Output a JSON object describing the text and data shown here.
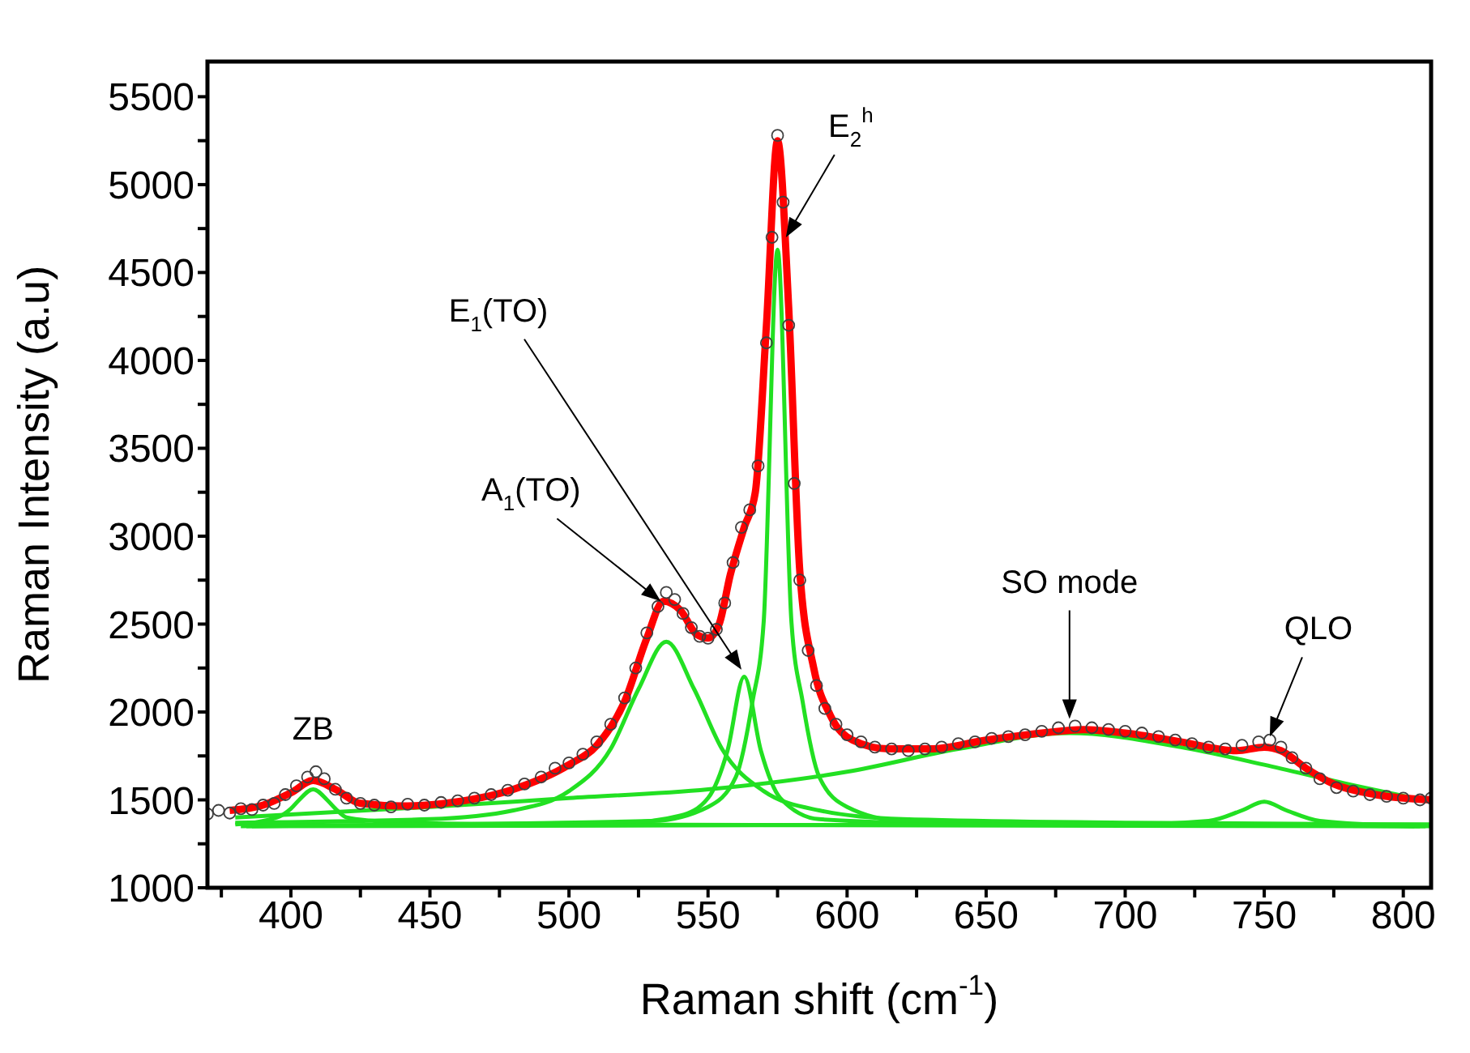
{
  "chart_data": {
    "type": "line",
    "xlabel": "Raman shift (cm$^{-1}$)",
    "ylabel": "Raman Intensity (a.u)",
    "xlim": [
      370,
      810
    ],
    "ylim": [
      1000,
      5700
    ],
    "xticks": [
      {
        "value": 375,
        "label": null
      },
      400,
      {
        "value": 425,
        "label": null
      },
      450,
      {
        "value": 475,
        "label": null
      },
      500,
      {
        "value": 525,
        "label": null
      },
      550,
      {
        "value": 575,
        "label": null
      },
      600,
      {
        "value": 625,
        "label": null
      },
      650,
      {
        "value": 675,
        "label": null
      },
      700,
      {
        "value": 725,
        "label": null
      },
      750,
      {
        "value": 775,
        "label": null
      },
      800
    ],
    "yticks": [
      1000,
      {
        "value": 1250,
        "label": null
      },
      1500,
      {
        "value": 1750,
        "label": null
      },
      2000,
      {
        "value": 2250,
        "label": null
      },
      2500,
      {
        "value": 2750,
        "label": null
      },
      3000,
      {
        "value": 3250,
        "label": null
      },
      3500,
      {
        "value": 3750,
        "label": null
      },
      4000,
      {
        "value": 4250,
        "label": null
      },
      4500,
      {
        "value": 4750,
        "label": null
      },
      5000,
      {
        "value": 5250,
        "label": null
      },
      5500
    ],
    "series": [
      {
        "type": "scatter",
        "color": "#404040",
        "marker": "circle",
        "x": [
          370,
          374,
          378,
          382,
          386,
          390,
          394,
          398,
          402,
          406,
          409,
          412,
          416,
          420,
          425,
          430,
          436,
          442,
          448,
          454,
          460,
          466,
          472,
          478,
          484,
          490,
          495,
          500,
          505,
          510,
          515,
          520,
          524,
          528,
          532,
          535,
          538,
          541,
          544,
          547,
          550,
          553,
          556,
          559,
          562,
          565,
          568,
          571,
          573,
          575,
          577,
          579,
          581,
          583,
          586,
          589,
          592,
          596,
          600,
          605,
          610,
          616,
          622,
          628,
          634,
          640,
          646,
          652,
          658,
          664,
          670,
          676,
          682,
          688,
          694,
          700,
          706,
          712,
          718,
          724,
          730,
          736,
          742,
          748,
          752,
          756,
          760,
          765,
          770,
          776,
          782,
          788,
          794,
          800,
          806,
          810
        ],
        "values": [
          1420,
          1440,
          1425,
          1450,
          1445,
          1470,
          1480,
          1530,
          1580,
          1630,
          1660,
          1620,
          1560,
          1510,
          1480,
          1470,
          1460,
          1475,
          1470,
          1485,
          1495,
          1510,
          1530,
          1555,
          1590,
          1630,
          1680,
          1710,
          1760,
          1830,
          1930,
          2080,
          2250,
          2450,
          2600,
          2680,
          2640,
          2560,
          2480,
          2430,
          2420,
          2470,
          2620,
          2850,
          3050,
          3150,
          3400,
          4100,
          4700,
          5280,
          4900,
          4200,
          3300,
          2750,
          2350,
          2150,
          2020,
          1930,
          1870,
          1830,
          1800,
          1790,
          1780,
          1790,
          1800,
          1820,
          1830,
          1850,
          1860,
          1870,
          1890,
          1910,
          1920,
          1910,
          1900,
          1890,
          1880,
          1860,
          1840,
          1820,
          1800,
          1790,
          1810,
          1830,
          1840,
          1800,
          1740,
          1680,
          1620,
          1570,
          1550,
          1530,
          1520,
          1510,
          1500,
          1510
        ]
      },
      {
        "color": "#ff0000",
        "x": [
          378,
          390,
          400,
          408,
          416,
          425,
          440,
          460,
          480,
          500,
          510,
          520,
          528,
          534,
          540,
          546,
          550,
          554,
          558,
          563,
          567,
          571,
          575,
          579,
          583,
          588,
          594,
          602,
          615,
          630,
          650,
          670,
          685,
          700,
          720,
          740,
          750,
          756,
          765,
          775,
          790,
          810
        ],
        "values": [
          1440,
          1470,
          1540,
          1610,
          1560,
          1480,
          1465,
          1490,
          1560,
          1700,
          1810,
          2060,
          2420,
          2630,
          2580,
          2440,
          2420,
          2500,
          2780,
          3050,
          3250,
          4200,
          5250,
          4300,
          2800,
          2250,
          1980,
          1840,
          1790,
          1790,
          1840,
          1880,
          1900,
          1880,
          1830,
          1780,
          1800,
          1780,
          1680,
          1590,
          1530,
          1500
        ]
      },
      {
        "color": "#22e022",
        "x": [
          380,
          395,
          400,
          403,
          408,
          413,
          416,
          420,
          430,
          440,
          500,
          810
        ],
        "values": [
          1360,
          1400,
          1450,
          1500,
          1560,
          1500,
          1450,
          1400,
          1380,
          1370,
          1360,
          1350
        ]
      },
      {
        "color": "#22e022",
        "x": [
          380,
          450,
          480,
          500,
          515,
          525,
          535,
          545,
          555,
          570,
          590,
          620,
          700,
          810
        ],
        "values": [
          1370,
          1390,
          1440,
          1550,
          1790,
          2130,
          2400,
          2130,
          1790,
          1550,
          1440,
          1390,
          1370,
          1360
        ]
      },
      {
        "color": "#22e022",
        "x": [
          382,
          520,
          540,
          550,
          557,
          563,
          569,
          576,
          590,
          650,
          808
        ],
        "values": [
          1350,
          1370,
          1410,
          1510,
          1780,
          2200,
          1780,
          1510,
          1390,
          1360,
          1350
        ]
      },
      {
        "color": "#22e022",
        "x": [
          384,
          530,
          550,
          560,
          566,
          570,
          575,
          580,
          584,
          590,
          600,
          620,
          806
        ],
        "values": [
          1350,
          1380,
          1460,
          1630,
          2060,
          2510,
          4630,
          2510,
          2060,
          1630,
          1460,
          1380,
          1350
        ]
      },
      {
        "color": "#22e022",
        "x": [
          380,
          450,
          500,
          550,
          600,
          640,
          680,
          720,
          750,
          780,
          810
        ],
        "values": [
          1400,
          1460,
          1510,
          1560,
          1660,
          1790,
          1880,
          1800,
          1700,
          1590,
          1490
        ]
      },
      {
        "color": "#22e022",
        "x": [
          386,
          700,
          730,
          742,
          750,
          758,
          770,
          804
        ],
        "values": [
          1350,
          1360,
          1380,
          1440,
          1490,
          1440,
          1380,
          1350
        ]
      }
    ],
    "annotations": [
      {
        "text": "ZB",
        "x": 408,
        "y": 1640
      },
      "A$_{1}$(TO)",
      "E$_{1}$(TO)",
      {
        "text": "E$_{2}$$^{h}$",
        "x": 578,
        "y": 4700
      },
      "SO mode",
      {
        "text": "QLO",
        "x": 752,
        "y": 1860
      }
    ]
  }
}
